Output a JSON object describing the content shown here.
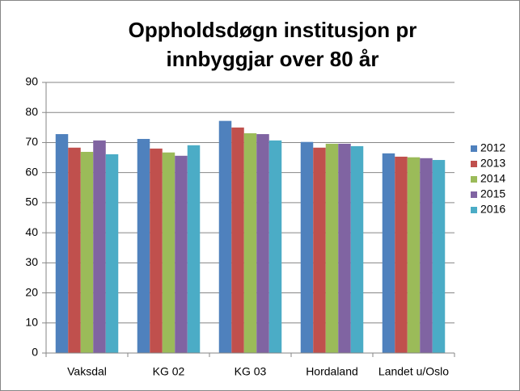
{
  "chart_data": {
    "type": "bar",
    "title": [
      "Oppholdsdøgn institusjon pr",
      "innbyggjar over 80 år"
    ],
    "categories": [
      "Vaksdal",
      "KG 02",
      "KG 03",
      "Hordaland",
      "Landet u/Oslo"
    ],
    "series": [
      {
        "name": "2012",
        "color": "#4f81bd",
        "values": [
          72.8,
          71.2,
          77.2,
          70.2,
          66.4
        ]
      },
      {
        "name": "2013",
        "color": "#c0504d",
        "values": [
          68.3,
          68.0,
          75.0,
          68.3,
          65.3
        ]
      },
      {
        "name": "2014",
        "color": "#9bbb59",
        "values": [
          66.9,
          66.7,
          73.1,
          69.6,
          65.1
        ]
      },
      {
        "name": "2015",
        "color": "#8064a2",
        "values": [
          70.7,
          65.6,
          72.8,
          69.6,
          64.8
        ]
      },
      {
        "name": "2016",
        "color": "#4bacc6",
        "values": [
          66.1,
          69.1,
          70.7,
          68.8,
          64.2
        ]
      }
    ],
    "ylim": [
      0,
      90
    ],
    "yticks": [
      0,
      10,
      20,
      30,
      40,
      50,
      60,
      70,
      80,
      90
    ],
    "grid": true,
    "legend": "right"
  }
}
